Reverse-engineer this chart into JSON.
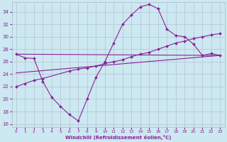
{
  "xlabel": "Windchill (Refroidissement éolien,°C)",
  "xlim": [
    -0.5,
    23.5
  ],
  "ylim": [
    15.5,
    35.5
  ],
  "yticks": [
    16,
    18,
    20,
    22,
    24,
    26,
    28,
    30,
    32,
    34
  ],
  "xticks": [
    0,
    1,
    2,
    3,
    4,
    5,
    6,
    7,
    8,
    9,
    10,
    11,
    12,
    13,
    14,
    15,
    16,
    17,
    18,
    19,
    20,
    21,
    22,
    23
  ],
  "bg_color": "#cce8f0",
  "grid_color": "#b0b8d0",
  "line_color": "#882299",
  "series": [
    {
      "x": [
        0,
        1,
        2,
        3,
        4,
        5,
        6,
        7,
        8,
        9,
        10,
        11,
        12,
        13,
        14,
        15,
        16,
        17,
        18,
        19,
        20,
        21,
        22,
        23
      ],
      "y": [
        27.2,
        26.6,
        26.5,
        22.8,
        20.3,
        18.8,
        17.5,
        16.5,
        20.0,
        23.5,
        26.0,
        29.0,
        32.0,
        33.5,
        34.8,
        35.2,
        34.5,
        31.2,
        30.2,
        30.0,
        28.8,
        27.0,
        27.3,
        27.0
      ],
      "markers": true
    },
    {
      "x": [
        0,
        23
      ],
      "y": [
        27.2,
        27.0
      ],
      "markers": false
    },
    {
      "x": [
        0,
        1,
        2,
        3,
        6,
        7,
        8,
        9,
        10,
        11,
        12,
        13,
        14,
        15,
        16,
        17,
        18,
        19,
        20,
        21,
        22,
        23
      ],
      "y": [
        22.0,
        22.5,
        23.0,
        23.3,
        24.5,
        24.8,
        25.0,
        25.3,
        25.7,
        26.0,
        26.3,
        26.8,
        27.2,
        27.5,
        28.0,
        28.5,
        29.0,
        29.3,
        29.7,
        30.0,
        30.3,
        30.5
      ],
      "markers": true
    },
    {
      "x": [
        0,
        23
      ],
      "y": [
        24.2,
        27.0
      ],
      "markers": false
    }
  ]
}
